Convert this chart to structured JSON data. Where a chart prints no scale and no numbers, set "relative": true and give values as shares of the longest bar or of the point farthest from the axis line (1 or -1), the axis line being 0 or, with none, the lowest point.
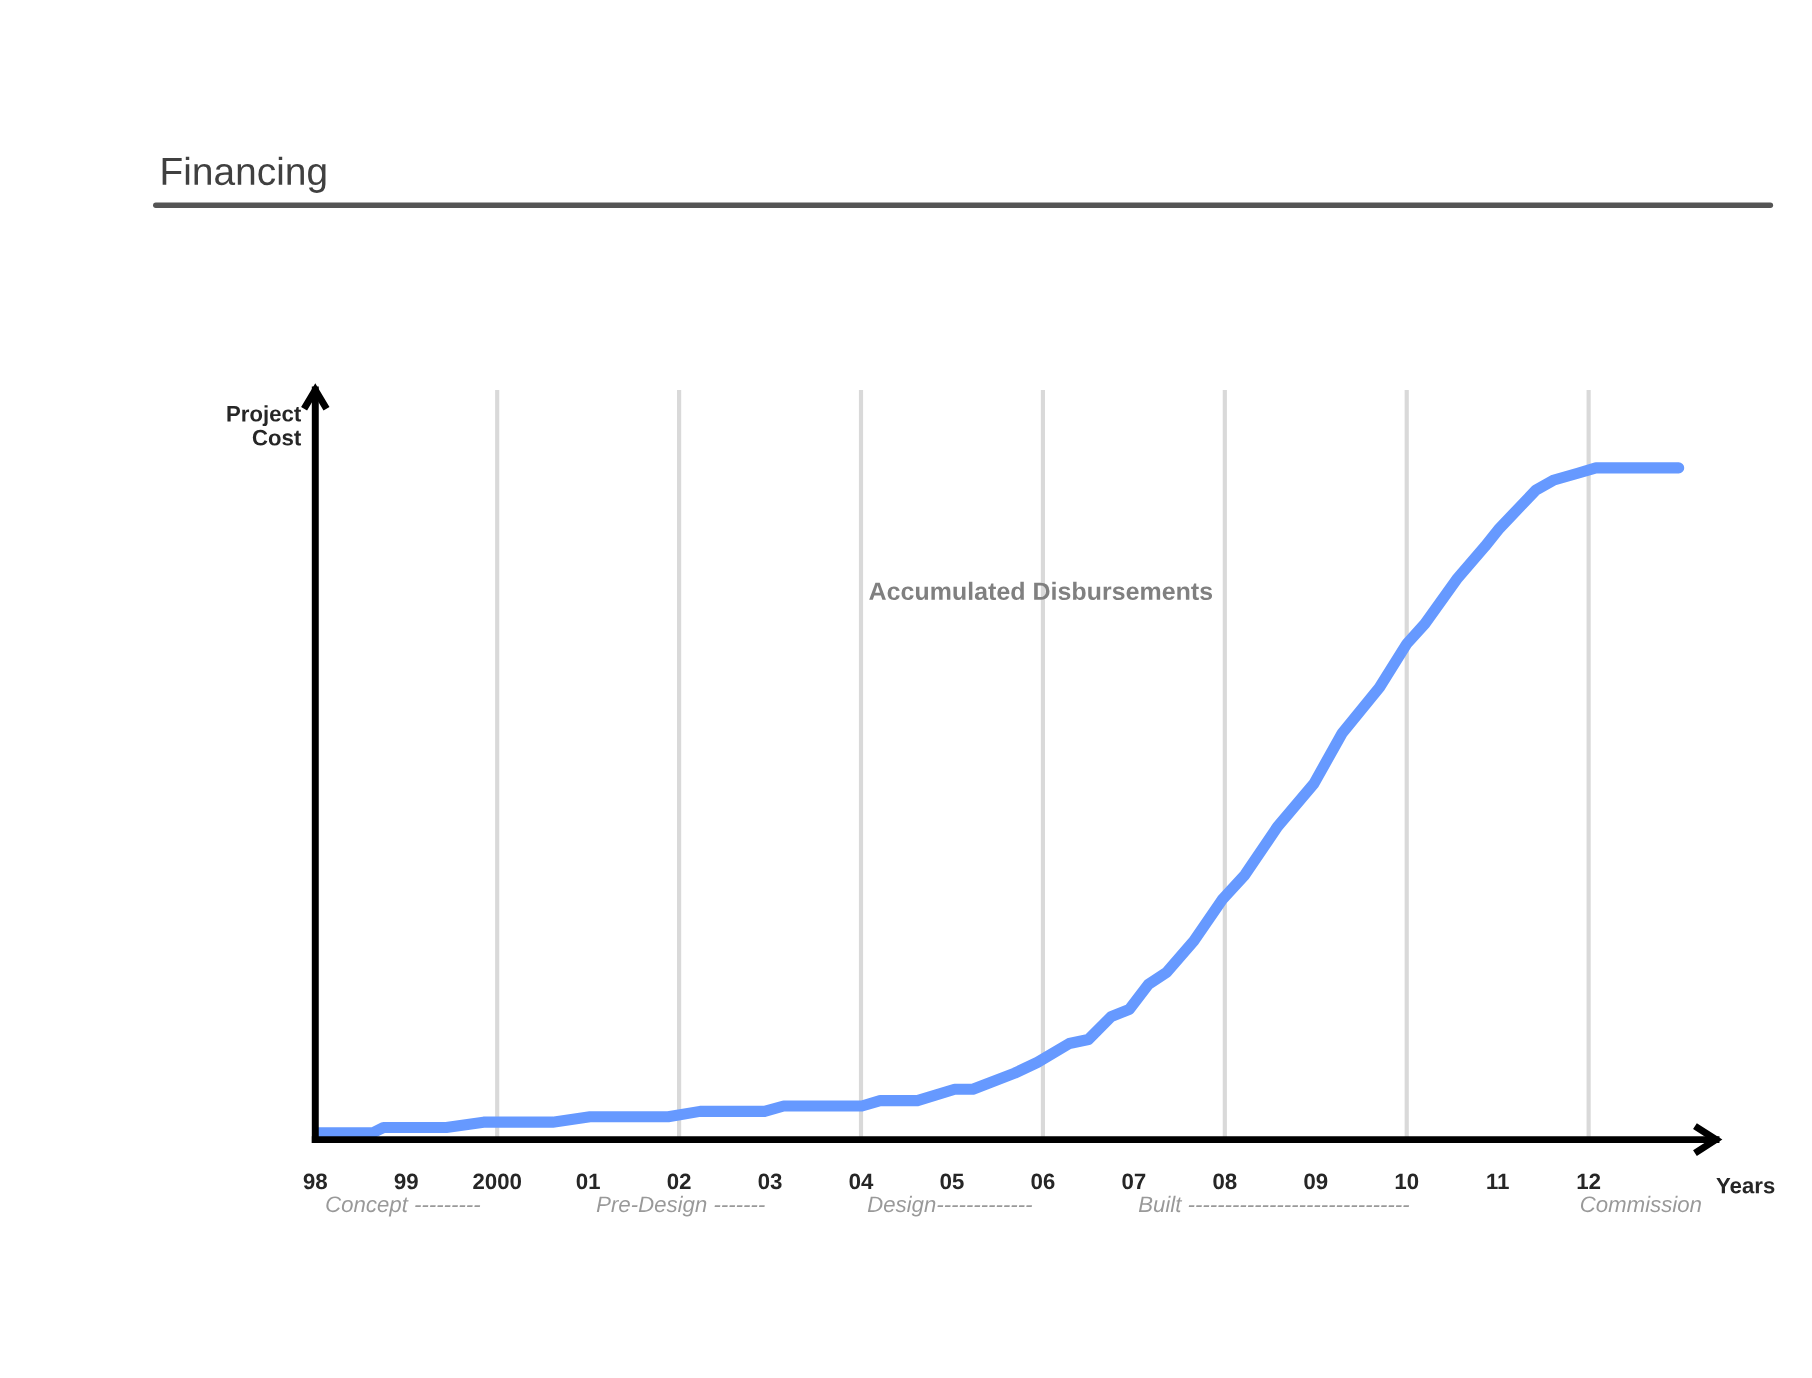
{
  "chart_data": {
    "type": "line",
    "title": "Financing",
    "xlabel": "Years",
    "ylabel": "Project\nCost",
    "relative": true,
    "xlim": [
      1998,
      2013.4
    ],
    "xticks": [
      {
        "value": 1998,
        "label": "98"
      },
      {
        "value": 1999,
        "label": "99"
      },
      2000,
      {
        "value": 2001,
        "label": "01"
      },
      {
        "value": 2002,
        "label": "02"
      },
      {
        "value": 2003,
        "label": "03"
      },
      {
        "value": 2004,
        "label": "04"
      },
      {
        "value": 2005,
        "label": "05"
      },
      {
        "value": 2006,
        "label": "06"
      },
      {
        "value": 2007,
        "label": "07"
      },
      {
        "value": 2008,
        "label": "08"
      },
      {
        "value": 2009,
        "label": "09"
      },
      {
        "value": 2010,
        "label": "10"
      },
      {
        "value": 2011,
        "label": "11"
      },
      {
        "value": 2012,
        "label": "12"
      }
    ],
    "ref_lines": [
      {
        "axis": "x",
        "value": 2000,
        "color": "#d9d9d9"
      },
      {
        "axis": "x",
        "value": 2002,
        "color": "#d9d9d9"
      },
      {
        "axis": "x",
        "value": 2004,
        "color": "#d9d9d9"
      },
      {
        "axis": "x",
        "value": 2006,
        "color": "#d9d9d9"
      },
      {
        "axis": "x",
        "value": 2008,
        "color": "#d9d9d9"
      },
      {
        "axis": "x",
        "value": 2010,
        "color": "#d9d9d9"
      },
      {
        "axis": "x",
        "value": 2012,
        "color": "#d9d9d9"
      }
    ],
    "annotations": [
      "Concept ---------",
      "Pre-Design -------",
      "Design-------------",
      "Built ------------------------------",
      "Commission"
    ],
    "series": [
      {
        "name": "Accumulated Disbursements",
        "color": "#6699ff",
        "x": [
          1998.0,
          1998.63,
          1998.75,
          1999.44,
          1999.85,
          2000.61,
          2001.02,
          2001.88,
          2002.23,
          2002.94,
          2003.15,
          2004.01,
          2004.21,
          2004.62,
          2005.03,
          2005.23,
          2005.69,
          2005.94,
          2006.29,
          2006.5,
          2006.75,
          2006.95,
          2007.16,
          2007.36,
          2007.66,
          2007.97,
          2008.22,
          2008.58,
          2008.98,
          2009.29,
          2009.7,
          2010.0,
          2010.2,
          2010.56,
          2010.86,
          2011.02,
          2011.42,
          2011.62,
          2011.88,
          2012.08,
          2012.99
        ],
        "values": [
          0.01,
          0.01,
          0.018,
          0.018,
          0.026,
          0.026,
          0.034,
          0.034,
          0.042,
          0.042,
          0.05,
          0.05,
          0.058,
          0.058,
          0.075,
          0.075,
          0.099,
          0.115,
          0.143,
          0.149,
          0.183,
          0.194,
          0.231,
          0.249,
          0.296,
          0.357,
          0.394,
          0.466,
          0.53,
          0.605,
          0.673,
          0.738,
          0.768,
          0.836,
          0.883,
          0.91,
          0.967,
          0.982,
          0.992,
          1,
          1
        ]
      }
    ]
  }
}
